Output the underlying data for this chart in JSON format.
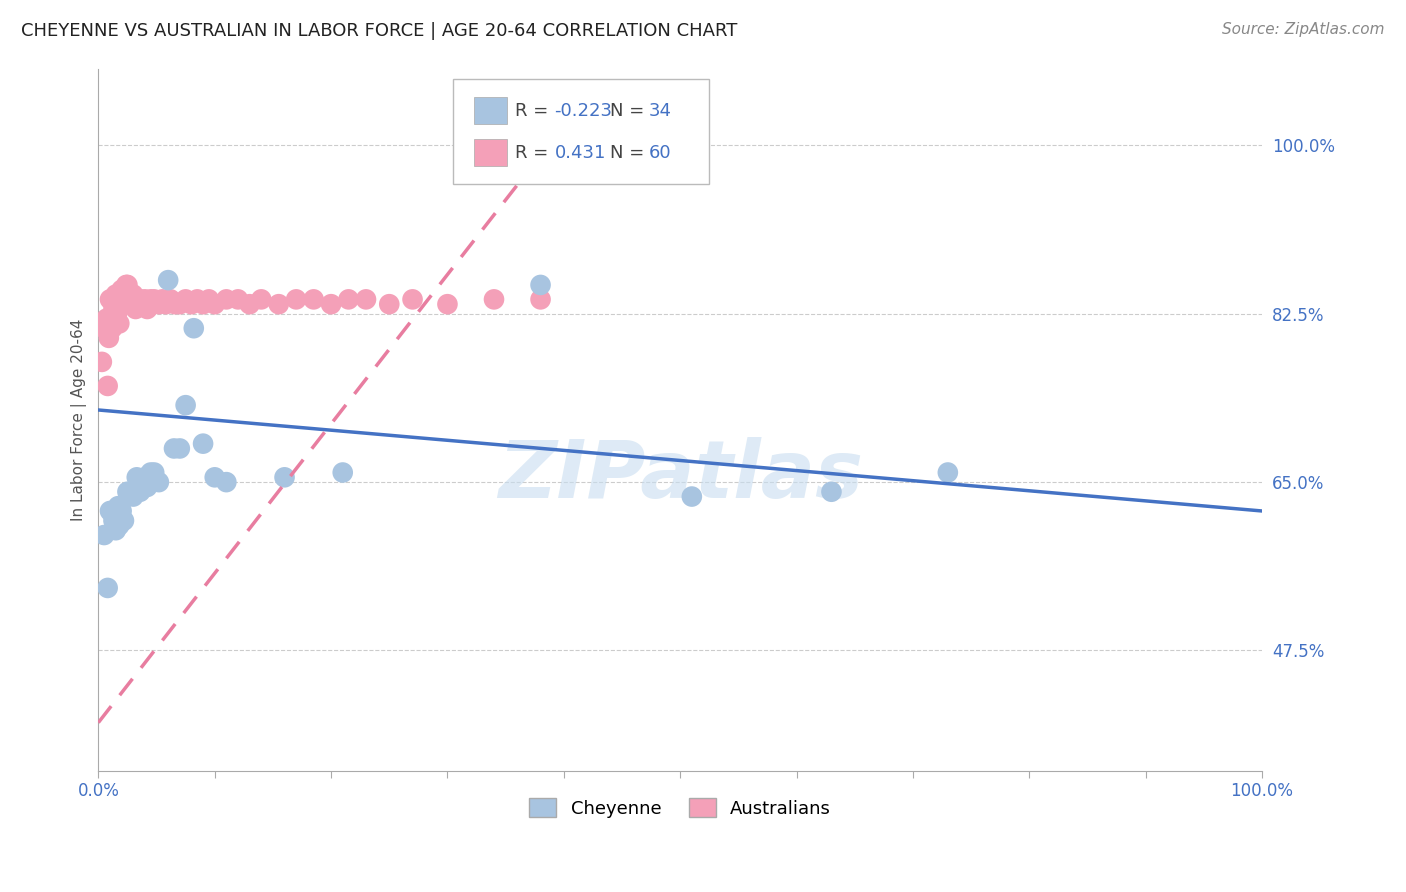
{
  "title": "CHEYENNE VS AUSTRALIAN IN LABOR FORCE | AGE 20-64 CORRELATION CHART",
  "source": "Source: ZipAtlas.com",
  "ylabel": "In Labor Force | Age 20-64",
  "watermark": "ZIPatlas",
  "xlim": [
    0.0,
    1.0
  ],
  "ylim": [
    0.35,
    1.08
  ],
  "yticks": [
    0.475,
    0.65,
    0.825,
    1.0
  ],
  "ytick_labels": [
    "47.5%",
    "65.0%",
    "82.5%",
    "100.0%"
  ],
  "legend_R_cheyenne": "-0.223",
  "legend_N_cheyenne": "34",
  "legend_R_australian": "0.431",
  "legend_N_australian": "60",
  "cheyenne_color": "#a8c4e0",
  "australian_color": "#f4a0b8",
  "cheyenne_line_color": "#4472c4",
  "australian_line_color": "#e87da0",
  "cheyenne_points_x": [
    0.005,
    0.008,
    0.01,
    0.013,
    0.015,
    0.017,
    0.018,
    0.02,
    0.022,
    0.025,
    0.028,
    0.03,
    0.033,
    0.036,
    0.038,
    0.04,
    0.042,
    0.045,
    0.048,
    0.052,
    0.06,
    0.065,
    0.07,
    0.075,
    0.082,
    0.09,
    0.1,
    0.11,
    0.16,
    0.21,
    0.38,
    0.51,
    0.63,
    0.73
  ],
  "cheyenne_points_y": [
    0.595,
    0.54,
    0.62,
    0.61,
    0.6,
    0.625,
    0.605,
    0.62,
    0.61,
    0.64,
    0.64,
    0.635,
    0.655,
    0.64,
    0.65,
    0.655,
    0.645,
    0.66,
    0.66,
    0.65,
    0.86,
    0.685,
    0.685,
    0.73,
    0.81,
    0.69,
    0.655,
    0.65,
    0.655,
    0.66,
    0.855,
    0.635,
    0.64,
    0.66
  ],
  "australian_points_x": [
    0.003,
    0.005,
    0.007,
    0.008,
    0.009,
    0.01,
    0.011,
    0.012,
    0.013,
    0.014,
    0.015,
    0.016,
    0.017,
    0.018,
    0.019,
    0.02,
    0.021,
    0.022,
    0.023,
    0.024,
    0.025,
    0.026,
    0.027,
    0.028,
    0.03,
    0.032,
    0.034,
    0.036,
    0.038,
    0.04,
    0.042,
    0.045,
    0.048,
    0.052,
    0.055,
    0.058,
    0.062,
    0.066,
    0.07,
    0.075,
    0.08,
    0.085,
    0.09,
    0.095,
    0.1,
    0.11,
    0.12,
    0.13,
    0.14,
    0.155,
    0.17,
    0.185,
    0.2,
    0.215,
    0.23,
    0.25,
    0.27,
    0.3,
    0.34,
    0.38
  ],
  "australian_points_y": [
    0.775,
    0.81,
    0.82,
    0.75,
    0.8,
    0.84,
    0.82,
    0.81,
    0.83,
    0.84,
    0.845,
    0.825,
    0.835,
    0.815,
    0.84,
    0.85,
    0.835,
    0.845,
    0.85,
    0.855,
    0.855,
    0.845,
    0.84,
    0.84,
    0.845,
    0.83,
    0.84,
    0.84,
    0.835,
    0.84,
    0.83,
    0.84,
    0.84,
    0.835,
    0.84,
    0.835,
    0.84,
    0.835,
    0.835,
    0.84,
    0.835,
    0.84,
    0.835,
    0.84,
    0.835,
    0.84,
    0.84,
    0.835,
    0.84,
    0.835,
    0.84,
    0.84,
    0.835,
    0.84,
    0.84,
    0.835,
    0.84,
    0.835,
    0.84,
    0.84
  ],
  "background_color": "#ffffff",
  "grid_color": "#cccccc",
  "title_fontsize": 13,
  "label_fontsize": 11,
  "tick_fontsize": 12,
  "legend_fontsize": 13,
  "source_fontsize": 11
}
